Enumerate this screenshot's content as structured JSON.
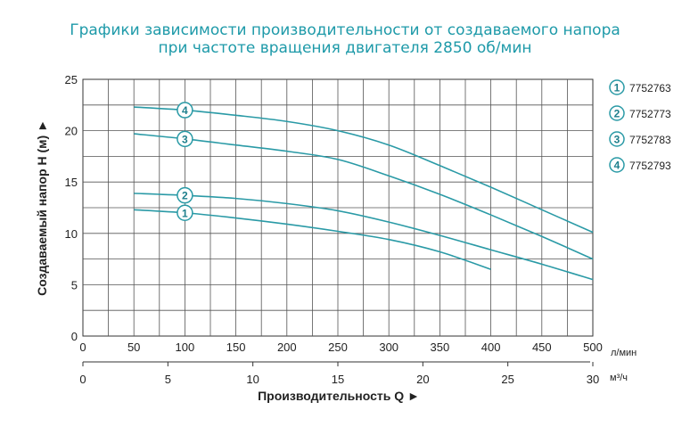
{
  "title_line1": "Графики зависимости производительности от создаваемого напора",
  "title_line2": "при частоте вращения двигателя 2850 об/мин",
  "colors": {
    "curve": "#2a9aa6",
    "title": "#1e9aa9",
    "grid": "#444444"
  },
  "chart_data": {
    "type": "line",
    "ylabel": "Создаваемый напор H (м) ►",
    "xlabel": "Производительность Q ►",
    "x_unit": "л/мин",
    "x2_unit": "м³/ч",
    "xlim": [
      0,
      500
    ],
    "ylim": [
      0,
      25
    ],
    "x_ticks": [
      0,
      50,
      100,
      150,
      200,
      250,
      300,
      350,
      400,
      450,
      500
    ],
    "x2_ticks": [
      0,
      5,
      10,
      15,
      20,
      25,
      30
    ],
    "y_ticks": [
      0,
      5,
      10,
      15,
      20,
      25
    ],
    "grid": true,
    "legend_position": "right",
    "series": [
      {
        "name": "7752763",
        "marker": "1",
        "marker_x": 100,
        "points": [
          [
            50,
            12.3
          ],
          [
            100,
            12.0
          ],
          [
            150,
            11.5
          ],
          [
            200,
            10.9
          ],
          [
            250,
            10.2
          ],
          [
            300,
            9.4
          ],
          [
            350,
            8.2
          ],
          [
            400,
            6.5
          ]
        ]
      },
      {
        "name": "7752773",
        "marker": "2",
        "marker_x": 100,
        "points": [
          [
            50,
            13.9
          ],
          [
            100,
            13.7
          ],
          [
            150,
            13.4
          ],
          [
            200,
            12.9
          ],
          [
            250,
            12.2
          ],
          [
            300,
            11.1
          ],
          [
            350,
            9.8
          ],
          [
            400,
            8.4
          ],
          [
            450,
            7.0
          ],
          [
            500,
            5.5
          ]
        ]
      },
      {
        "name": "7752783",
        "marker": "3",
        "marker_x": 100,
        "points": [
          [
            50,
            19.7
          ],
          [
            100,
            19.2
          ],
          [
            150,
            18.6
          ],
          [
            200,
            18.0
          ],
          [
            250,
            17.2
          ],
          [
            300,
            15.6
          ],
          [
            350,
            13.8
          ],
          [
            400,
            11.8
          ],
          [
            450,
            9.7
          ],
          [
            500,
            7.5
          ]
        ]
      },
      {
        "name": "7752793",
        "marker": "4",
        "marker_x": 100,
        "points": [
          [
            50,
            22.3
          ],
          [
            100,
            22.0
          ],
          [
            150,
            21.5
          ],
          [
            200,
            20.9
          ],
          [
            250,
            20.0
          ],
          [
            300,
            18.6
          ],
          [
            350,
            16.6
          ],
          [
            400,
            14.5
          ],
          [
            450,
            12.3
          ],
          [
            500,
            10.1
          ]
        ]
      }
    ]
  }
}
